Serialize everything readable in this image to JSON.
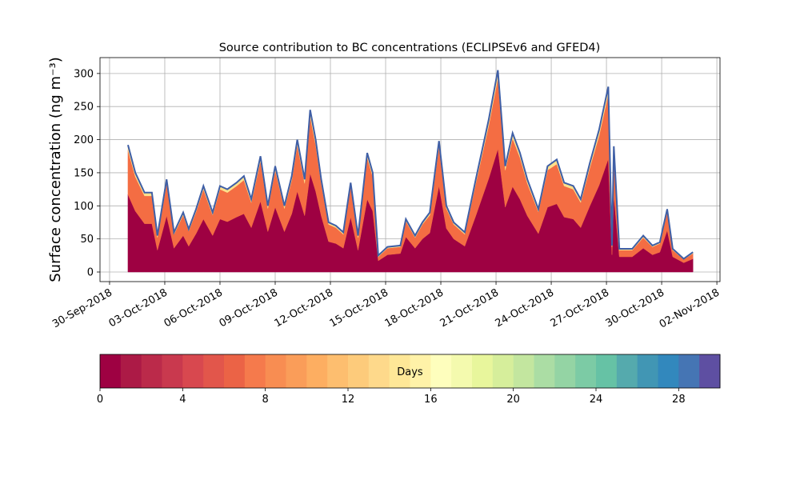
{
  "chart_data": {
    "type": "stacked_area",
    "title": "Source contribution to BC concentrations (ECLIPSEv6 and GFED4)",
    "ylabel": "Surface concentration (ng m⁻³)",
    "x": [
      1,
      1.4,
      1.9,
      2.3,
      2.6,
      3.1,
      3.5,
      4.0,
      4.3,
      4.7,
      5.1,
      5.6,
      6.0,
      6.4,
      6.9,
      7.3,
      7.7,
      8.2,
      8.6,
      9.0,
      9.5,
      9.9,
      10.2,
      10.6,
      10.9,
      11.2,
      11.5,
      11.9,
      12.3,
      12.7,
      13.1,
      13.5,
      14.0,
      14.3,
      14.6,
      15.1,
      15.8,
      16.1,
      16.6,
      17.0,
      17.4,
      17.9,
      18.3,
      18.7,
      19.3,
      19.9,
      20.6,
      21.1,
      21.5,
      21.9,
      22.3,
      22.7,
      23.3,
      23.8,
      24.3,
      24.7,
      25.2,
      25.6,
      26.1,
      26.6,
      27.1,
      27.3,
      27.4,
      27.7,
      28.4,
      29.0,
      29.5,
      29.9,
      30.3,
      30.6,
      31.2,
      31.7
    ],
    "series": [
      {
        "color": "#9e0142",
        "values": [
          117,
          92,
          73,
          73,
          33,
          85,
          36,
          55,
          39,
          58,
          80,
          55,
          80,
          76,
          83,
          88,
          67,
          107,
          61,
          98,
          61,
          88,
          122,
          85,
          149,
          122,
          85,
          46,
          43,
          36,
          83,
          33,
          110,
          92,
          17,
          26,
          28,
          53,
          36,
          50,
          59,
          130,
          66,
          50,
          39,
          85,
          141,
          186,
          98,
          129,
          110,
          85,
          58,
          98,
          103,
          83,
          80,
          67,
          100,
          131,
          171,
          26,
          116,
          23,
          23,
          36,
          26,
          30,
          63,
          23,
          14,
          20
        ]
      },
      {
        "color": "#f46d43",
        "values": [
          67,
          52,
          42,
          42,
          19,
          49,
          21,
          31,
          23,
          33,
          45,
          31,
          45,
          44,
          47,
          51,
          38,
          61,
          35,
          56,
          35,
          51,
          70,
          49,
          86,
          70,
          49,
          26,
          24,
          21,
          47,
          19,
          63,
          52,
          6,
          10,
          10,
          24,
          16,
          22,
          27,
          60,
          30,
          22,
          18,
          49,
          80,
          107,
          56,
          73,
          63,
          49,
          33,
          56,
          60,
          47,
          45,
          38,
          58,
          75,
          98,
          12,
          66,
          10,
          10,
          16,
          12,
          13,
          28,
          10,
          5,
          8
        ]
      },
      {
        "color": "#fee08b",
        "values": [
          8,
          6,
          5,
          5,
          3,
          6,
          3,
          4,
          3,
          4,
          5,
          4,
          5,
          5,
          5,
          6,
          5,
          7,
          4,
          6,
          4,
          6,
          8,
          6,
          10,
          8,
          6,
          3,
          3,
          3,
          5,
          3,
          7,
          6,
          2,
          2,
          2,
          3,
          3,
          3,
          4,
          8,
          4,
          3,
          3,
          6,
          9,
          12,
          6,
          8,
          7,
          6,
          4,
          6,
          7,
          5,
          5,
          5,
          7,
          9,
          11,
          2,
          8,
          2,
          2,
          3,
          2,
          2,
          4,
          2,
          1,
          2
        ]
      }
    ],
    "outline_color": "#3f5fa6",
    "xlim": [
      -0.52,
      33.17
    ],
    "xticks": [
      {
        "value": 0,
        "label": "30-Sep-2018"
      },
      {
        "value": 3,
        "label": "03-Oct-2018"
      },
      {
        "value": 6,
        "label": "06-Oct-2018"
      },
      {
        "value": 9,
        "label": "09-Oct-2018"
      },
      {
        "value": 12,
        "label": "12-Oct-2018"
      },
      {
        "value": 15,
        "label": "15-Oct-2018"
      },
      {
        "value": 18,
        "label": "18-Oct-2018"
      },
      {
        "value": 21,
        "label": "21-Oct-2018"
      },
      {
        "value": 24,
        "label": "24-Oct-2018"
      },
      {
        "value": 27,
        "label": "27-Oct-2018"
      },
      {
        "value": 30,
        "label": "30-Oct-2018"
      },
      {
        "value": 33,
        "label": "02-Nov-2018"
      }
    ],
    "ylim": [
      -14.5,
      324
    ],
    "yticks": [
      0,
      50,
      100,
      150,
      200,
      250,
      300
    ],
    "grid": true,
    "colorbar": {
      "label": "Days",
      "lim": [
        0,
        30
      ],
      "ticks": [
        0,
        4,
        8,
        12,
        16,
        20,
        24,
        28
      ],
      "colors": [
        "#9e0142",
        "#ac1a46",
        "#bb2a4a",
        "#c9394e",
        "#d8484f",
        "#e2564b",
        "#eb6346",
        "#f57a4c",
        "#f88d52",
        "#fa9d59",
        "#fdae61",
        "#fdbe6f",
        "#fdcb7b",
        "#fed98b",
        "#fee797",
        "#fff2a8",
        "#fefebd",
        "#f4faae",
        "#e8f69c",
        "#d6ee9b",
        "#c3e69f",
        "#abdda4",
        "#94d4a4",
        "#7ccba5",
        "#66c2a5",
        "#55aaad",
        "#4196b4",
        "#3288bd",
        "#4575b4",
        "#5e4fa2"
      ]
    }
  }
}
